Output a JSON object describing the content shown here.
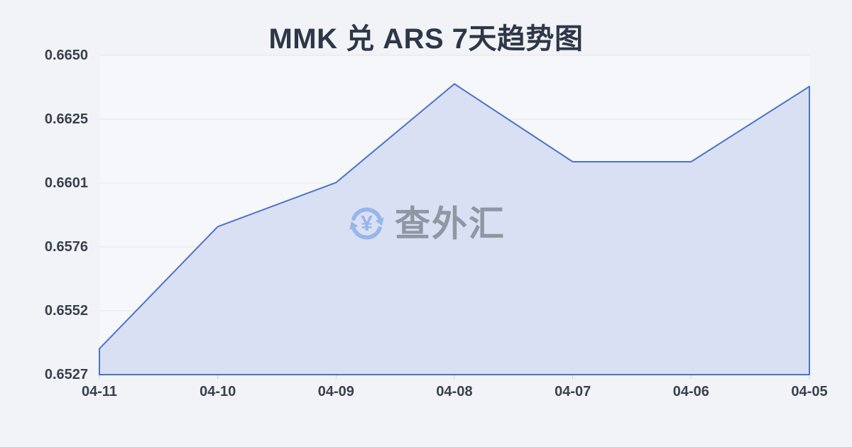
{
  "chart_data": {
    "type": "area",
    "title": "MMK 兑 ARS 7天趋势图",
    "categories": [
      "04-11",
      "04-10",
      "04-09",
      "04-08",
      "04-07",
      "04-06",
      "04-05"
    ],
    "values": [
      0.6537,
      0.6584,
      0.6601,
      0.6639,
      0.6609,
      0.6609,
      0.6638
    ],
    "series_name": "MMK/ARS",
    "y_ticks": [
      "0.6650",
      "0.6625",
      "0.6601",
      "0.6576",
      "0.6552",
      "0.6527"
    ],
    "ylim": [
      0.6527,
      0.665
    ],
    "grid": true,
    "legend": "none",
    "line_color": "#4b74c9",
    "fill_color": "#d9e0f3"
  },
  "watermark": {
    "text": "查外汇",
    "icon": "currency-exchange-refresh-icon",
    "icon_color": "#97b6ea",
    "text_color": "#8f97a3",
    "icon_symbol": "¥"
  },
  "colors": {
    "background": "#f1f3f6",
    "plot_background": "#f6f7fa",
    "title_text": "#2d3748",
    "axis_label": "#39414f",
    "gridline": "#e2e4ea",
    "tick_mark": "#c9cdd5"
  }
}
